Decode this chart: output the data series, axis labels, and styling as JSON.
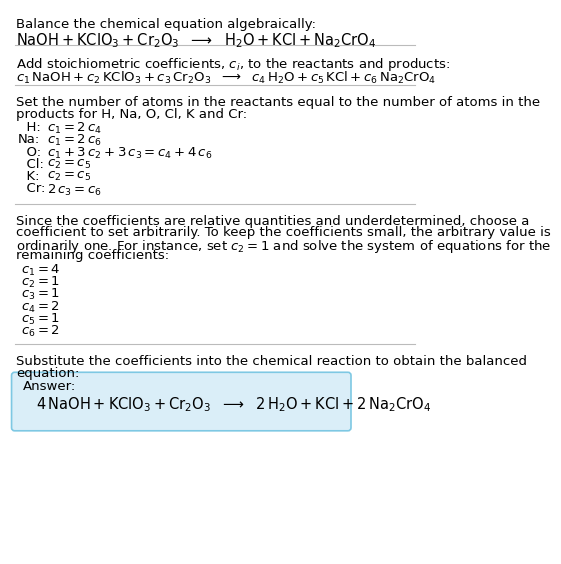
{
  "bg_color": "#ffffff",
  "text_color": "#000000",
  "answer_box_color": "#daeef8",
  "answer_box_edge": "#7ec8e3",
  "body_fontsize": 9.5,
  "math_fontsize": 9.5,
  "section1_title": "Balance the chemical equation algebraically:",
  "section2_title": "Add stoichiometric coefficients, $c_i$, to the reactants and products:",
  "section3_title_line1": "Set the number of atoms in the reactants equal to the number of atoms in the",
  "section3_title_line2": "products for H, Na, O, Cl, K and Cr:",
  "section3_eqs": [
    [
      "  H:",
      "$c_1 = 2\\,c_4$"
    ],
    [
      "Na:",
      "$c_1 = 2\\,c_6$"
    ],
    [
      "  O:",
      "$c_1 + 3\\,c_2 + 3\\,c_3 = c_4 + 4\\,c_6$"
    ],
    [
      "  Cl:",
      "$c_2 = c_5$"
    ],
    [
      "  K:",
      "$c_2 = c_5$"
    ],
    [
      "  Cr:",
      "$2\\,c_3 = c_6$"
    ]
  ],
  "section4_title_lines": [
    "Since the coefficients are relative quantities and underdetermined, choose a",
    "coefficient to set arbitrarily. To keep the coefficients small, the arbitrary value is",
    "ordinarily one. For instance, set $c_2 = 1$ and solve the system of equations for the",
    "remaining coefficients:"
  ],
  "section4_eqs": [
    "$c_1 = 4$",
    "$c_2 = 1$",
    "$c_3 = 1$",
    "$c_4 = 2$",
    "$c_5 = 1$",
    "$c_6 = 2$"
  ],
  "section5_title_line1": "Substitute the coefficients into the chemical reaction to obtain the balanced",
  "section5_title_line2": "equation:",
  "answer_label": "Answer:",
  "line_color": "#bbbbbb"
}
